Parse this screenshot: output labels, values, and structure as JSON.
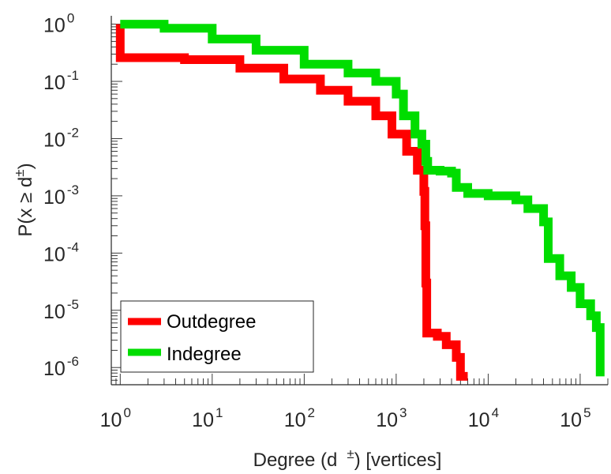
{
  "chart_data": {
    "type": "line",
    "x_scale": "log",
    "y_scale": "log",
    "xlim": [
      0.8,
      200000
    ],
    "ylim": [
      5e-07,
      1.4
    ],
    "x_ticks": [
      {
        "value": 1,
        "base": "10",
        "exp": "0"
      },
      {
        "value": 10,
        "base": "10",
        "exp": "1"
      },
      {
        "value": 100,
        "base": "10",
        "exp": "2"
      },
      {
        "value": 1000,
        "base": "10",
        "exp": "3"
      },
      {
        "value": 10000,
        "base": "10",
        "exp": "4"
      },
      {
        "value": 100000,
        "base": "10",
        "exp": "5"
      }
    ],
    "y_ticks": [
      {
        "value": 1,
        "base": "10",
        "exp": "0"
      },
      {
        "value": 0.1,
        "base": "10",
        "exp": "-1"
      },
      {
        "value": 0.01,
        "base": "10",
        "exp": "-2"
      },
      {
        "value": 0.001,
        "base": "10",
        "exp": "-3"
      },
      {
        "value": 0.0001,
        "base": "10",
        "exp": "-4"
      },
      {
        "value": 1e-05,
        "base": "10",
        "exp": "-5"
      },
      {
        "value": 1e-06,
        "base": "10",
        "exp": "-6"
      }
    ],
    "xlabel": {
      "main": "Degree (d",
      "sup": "±",
      "tail": ") [vertices]"
    },
    "ylabel": {
      "main": "P(x ≥ d",
      "sup": "±",
      "tail": ")"
    },
    "legend": {
      "position": "bottom-left"
    },
    "series": [
      {
        "name": "Outdegree",
        "color": "#ff0000",
        "points": [
          [
            1,
            1
          ],
          [
            1,
            0.26
          ],
          [
            5,
            0.24
          ],
          [
            20,
            0.17
          ],
          [
            60,
            0.11
          ],
          [
            150,
            0.07
          ],
          [
            300,
            0.045
          ],
          [
            600,
            0.025
          ],
          [
            900,
            0.012
          ],
          [
            1300,
            0.006
          ],
          [
            1700,
            0.0028
          ],
          [
            2000,
            0.0012
          ],
          [
            2050,
            0.0003
          ],
          [
            2100,
            3e-05
          ],
          [
            2150,
            4e-06
          ],
          [
            2800,
            3.5e-06
          ],
          [
            3500,
            2.5e-06
          ],
          [
            4500,
            1.5e-06
          ],
          [
            5000,
            7e-07
          ],
          [
            6000,
            7e-07
          ]
        ]
      },
      {
        "name": "Indegree",
        "color": "#00dd00",
        "points": [
          [
            1,
            1
          ],
          [
            3,
            0.85
          ],
          [
            10,
            0.55
          ],
          [
            30,
            0.35
          ],
          [
            100,
            0.2
          ],
          [
            300,
            0.14
          ],
          [
            600,
            0.1
          ],
          [
            1000,
            0.06
          ],
          [
            1200,
            0.025
          ],
          [
            1600,
            0.012
          ],
          [
            1900,
            0.008
          ],
          [
            2100,
            0.004
          ],
          [
            2200,
            0.0028
          ],
          [
            3000,
            0.0027
          ],
          [
            4000,
            0.0025
          ],
          [
            4500,
            0.0014
          ],
          [
            6000,
            0.0011
          ],
          [
            10000,
            0.001
          ],
          [
            20000,
            0.00085
          ],
          [
            27000,
            0.0006
          ],
          [
            40000,
            0.00035
          ],
          [
            45000,
            8e-05
          ],
          [
            60000,
            4e-05
          ],
          [
            80000,
            2.5e-05
          ],
          [
            100000,
            1.3e-05
          ],
          [
            130000,
            8e-06
          ],
          [
            150000,
            5e-06
          ],
          [
            165000,
            7e-07
          ]
        ]
      }
    ]
  }
}
